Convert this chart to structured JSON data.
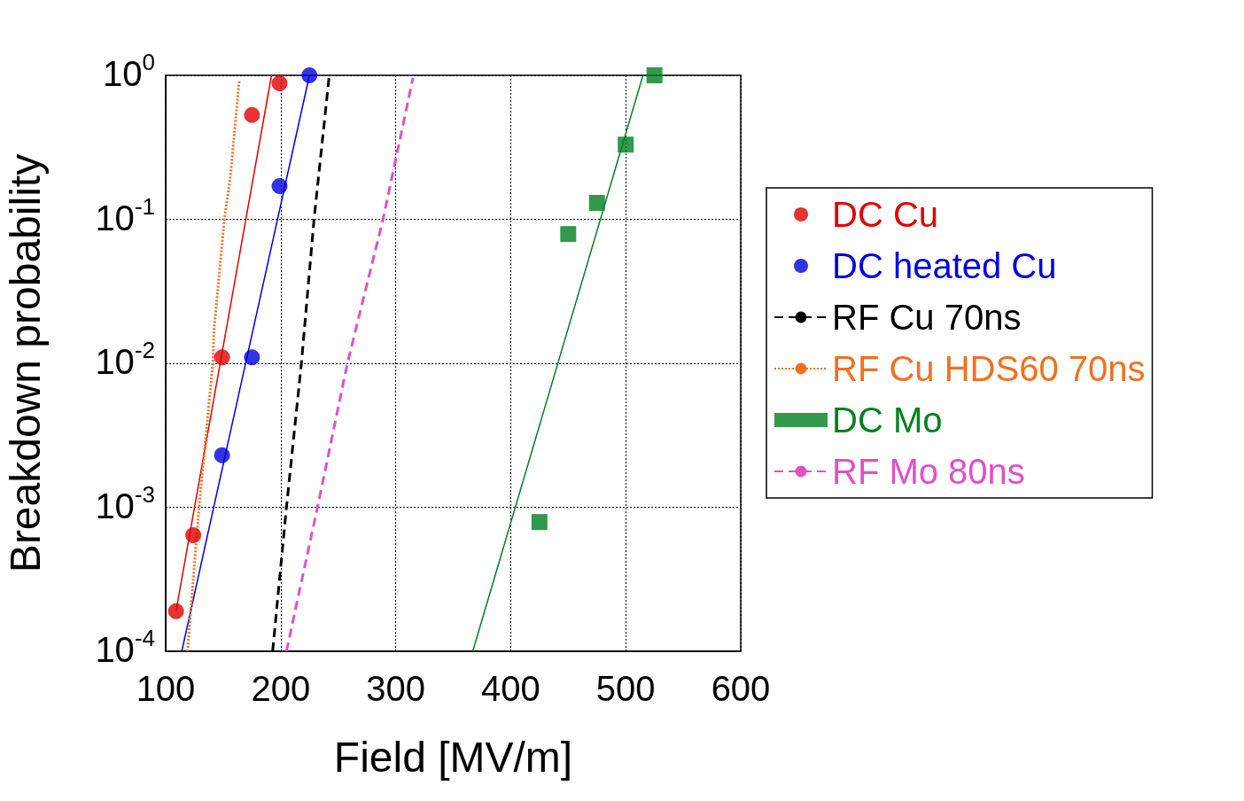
{
  "chart_data": {
    "type": "scatter",
    "xlabel": "Field [MV/m]",
    "ylabel": "Breakdown probability",
    "log": "y",
    "grid": true,
    "legend": "right",
    "xlim": [
      100,
      600
    ],
    "xticks": [
      100,
      200,
      300,
      400,
      500,
      600
    ],
    "ylim": [
      0.0001,
      1
    ],
    "yticks": [
      {
        "value": 0.0001,
        "label": "10$^{-4}$"
      },
      {
        "value": 0.001,
        "label": "10$^{-3}$"
      },
      {
        "value": 0.01,
        "label": "10$^{-2}$"
      },
      {
        "value": 0.1,
        "label": "10$^{-1}$"
      },
      {
        "value": 1,
        "label": "10$^{0}$"
      }
    ],
    "series": [
      {
        "name": "DC Cu",
        "marker": "circle",
        "color": "#e00000",
        "x": [
          109,
          124,
          149,
          175,
          199
        ],
        "values": [
          0.00019,
          0.00064,
          0.011,
          0.53,
          0.88
        ]
      },
      {
        "type": "line",
        "marker": "none",
        "line_style": "solid",
        "color": "#e00000",
        "x": [
          109,
          192
        ],
        "values": [
          0.00019,
          1
        ]
      },
      {
        "name": "DC heated Cu",
        "marker": "circle",
        "color": "#0000e0",
        "x": [
          149,
          175,
          199,
          225
        ],
        "values": [
          0.0023,
          0.011,
          0.17,
          1
        ]
      },
      {
        "type": "line",
        "marker": "none",
        "line_style": "solid",
        "color": "#0000e0",
        "x": [
          114,
          225
        ],
        "values": [
          0.0001,
          1
        ]
      },
      {
        "name": "RF Cu 70ns",
        "type": "line",
        "marker": "none",
        "line_style": "dashed",
        "color": "#000000",
        "x": [
          193,
          205,
          218,
          229,
          242
        ],
        "values": [
          0.0001,
          0.001,
          0.01,
          0.1,
          0.96
        ]
      },
      {
        "name": "RF Cu HDS60 70ns",
        "type": "line",
        "marker": "none",
        "line_style": "dotted",
        "color": "#f07020",
        "x": [
          119,
          129,
          141,
          142,
          151,
          156,
          164
        ],
        "values": [
          0.0001,
          0.001,
          0.01,
          0.017,
          0.1,
          0.19,
          0.93
        ]
      },
      {
        "name": "DC Mo",
        "marker": "square",
        "color": "#008020",
        "x": [
          425,
          450,
          475,
          500,
          525
        ],
        "values": [
          0.00079,
          0.079,
          0.13,
          0.33,
          1
        ]
      },
      {
        "type": "line",
        "marker": "none",
        "line_style": "solid",
        "color": "#008020",
        "x": [
          367,
          515
        ],
        "values": [
          0.0001,
          1
        ]
      },
      {
        "name": "RF Mo 80ns",
        "type": "line",
        "marker": "none",
        "line_style": "dashed",
        "color": "#e050c8",
        "x": [
          205,
          232,
          258,
          289,
          315
        ],
        "values": [
          0.0001,
          0.001,
          0.01,
          0.1,
          0.96
        ]
      }
    ]
  }
}
